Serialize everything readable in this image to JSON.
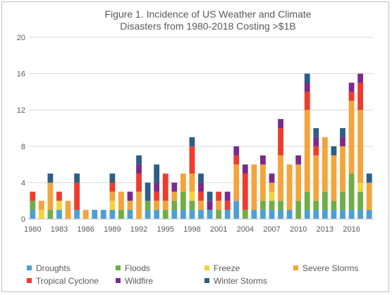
{
  "chart_data": {
    "type": "bar",
    "stacked": true,
    "title": "Figure 1. Incidence of US Weather and Climate Disasters from 1980-2018 Costing >$1B",
    "title_lines": [
      "Figure 1. Incidence of US Weather and Climate",
      "Disasters from 1980-2018 Costing >$1B"
    ],
    "xlabel": "",
    "ylabel": "",
    "ylim": [
      0,
      20
    ],
    "yticks": [
      0,
      4,
      8,
      12,
      16,
      20
    ],
    "grid": true,
    "legend_position": "bottom",
    "categories": [
      1980,
      1981,
      1982,
      1983,
      1984,
      1985,
      1986,
      1987,
      1988,
      1989,
      1990,
      1991,
      1992,
      1993,
      1994,
      1995,
      1996,
      1997,
      1998,
      1999,
      2000,
      2001,
      2002,
      2003,
      2004,
      2005,
      2006,
      2007,
      2008,
      2009,
      2010,
      2011,
      2012,
      2013,
      2014,
      2015,
      2016,
      2017,
      2018
    ],
    "xtick_labels": [
      "1980",
      "1983",
      "1986",
      "1989",
      "1992",
      "1995",
      "1998",
      "2001",
      "2004",
      "2007",
      "2010",
      "2013",
      "2016"
    ],
    "series": [
      {
        "name": "Droughts",
        "color": "#4e9fd1",
        "values": [
          1,
          0,
          0,
          1,
          0,
          1,
          0,
          1,
          1,
          1,
          0,
          1,
          0,
          1,
          1,
          0,
          1,
          1,
          1,
          1,
          1,
          0,
          1,
          2,
          0,
          1,
          1,
          1,
          1,
          1,
          0,
          1,
          1,
          1,
          1,
          1,
          1,
          1,
          1
        ]
      },
      {
        "name": "Floods",
        "color": "#70ad47",
        "values": [
          1,
          0,
          1,
          0,
          0,
          0,
          0,
          0,
          0,
          0,
          1,
          0,
          0,
          1,
          0,
          1,
          1,
          2,
          1,
          0,
          0,
          1,
          0,
          0,
          1,
          0,
          1,
          1,
          1,
          0,
          2,
          2,
          1,
          2,
          1,
          2,
          4,
          2,
          0
        ]
      },
      {
        "name": "Freeze",
        "color": "#f2d33b",
        "values": [
          0,
          1,
          0,
          1,
          0,
          0,
          0,
          0,
          0,
          1,
          0,
          0,
          0,
          0,
          0,
          0,
          0,
          0,
          1,
          0,
          0,
          0,
          0,
          0,
          0,
          0,
          0,
          1,
          0,
          0,
          0,
          0,
          0,
          0,
          0,
          0,
          0,
          1,
          0
        ]
      },
      {
        "name": "Severe Storms",
        "color": "#f4a43a",
        "values": [
          0,
          1,
          3,
          0,
          2,
          0,
          1,
          0,
          0,
          1,
          2,
          1,
          3,
          0,
          1,
          1,
          1,
          2,
          2,
          1,
          0,
          1,
          0,
          4,
          0,
          5,
          4,
          1,
          5,
          5,
          4,
          9,
          5,
          6,
          5,
          5,
          8,
          8,
          3
        ]
      },
      {
        "name": "Tropical Cyclone",
        "color": "#ef3b2c",
        "values": [
          1,
          0,
          0,
          1,
          0,
          3,
          0,
          0,
          0,
          1,
          0,
          0,
          2,
          0,
          1,
          3,
          0,
          0,
          3,
          1,
          0,
          1,
          1,
          1,
          4,
          0,
          0,
          0,
          3,
          0,
          0,
          2,
          1,
          0,
          0,
          0,
          1,
          3,
          0
        ]
      },
      {
        "name": "Wildfire",
        "color": "#7b2a8c",
        "values": [
          0,
          0,
          0,
          0,
          0,
          0,
          0,
          0,
          0,
          0,
          0,
          1,
          1,
          0,
          1,
          0,
          1,
          0,
          0,
          1,
          1,
          0,
          1,
          1,
          1,
          0,
          1,
          1,
          1,
          0,
          1,
          1,
          1,
          0,
          0,
          1,
          1,
          1,
          0
        ]
      },
      {
        "name": "Winter Storms",
        "color": "#2c5e86",
        "values": [
          0,
          0,
          1,
          0,
          0,
          1,
          0,
          0,
          0,
          1,
          0,
          0,
          1,
          2,
          2,
          0,
          0,
          0,
          1,
          1,
          1,
          0,
          0,
          0,
          0,
          0,
          0,
          0,
          0,
          0,
          0,
          1,
          1,
          0,
          1,
          1,
          0,
          0,
          1
        ]
      }
    ]
  }
}
